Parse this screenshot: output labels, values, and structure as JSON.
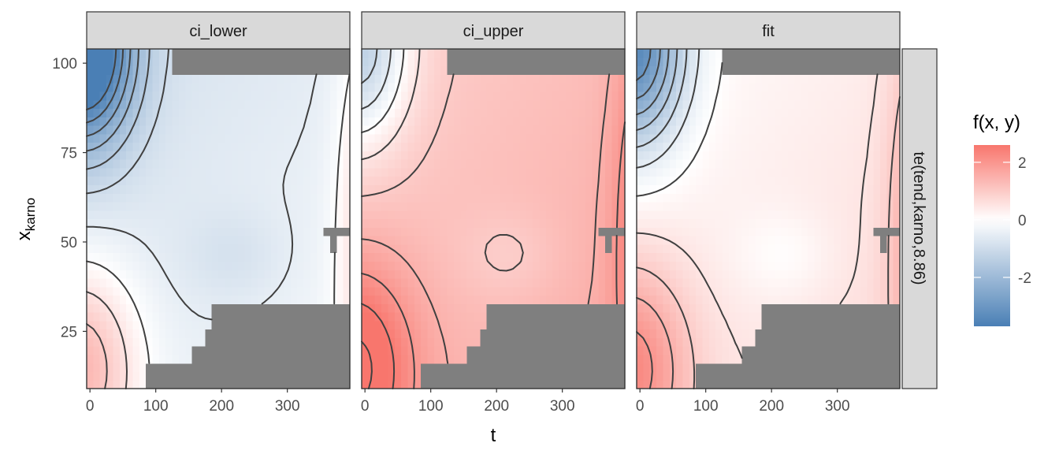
{
  "chart_data": {
    "type": "heatmap",
    "xlabel": "t",
    "ylabel_main": "x",
    "ylabel_sub": "karno",
    "x_ticks": [
      0,
      100,
      200,
      300
    ],
    "y_ticks": [
      25,
      50,
      75,
      100
    ],
    "xlim": [
      -5,
      395
    ],
    "ylim": [
      9,
      104
    ],
    "facet_row_label": "te(tend,karno,8.86)",
    "legend": {
      "title": "f(x, y)",
      "ticks": [
        2,
        0,
        -2
      ],
      "tick_labels": [
        "2",
        "0",
        "-2"
      ],
      "range": [
        -3.7,
        2.6
      ],
      "colors": {
        "low": "#4a7fb5",
        "mid": "#ffffff",
        "high": "#f8766d"
      }
    },
    "missing_color": "#7f7f7f",
    "contour_color": "#404040",
    "panels": [
      {
        "label": "ci_lower",
        "offset": -0.9,
        "cold": 1.2
      },
      {
        "label": "ci_upper",
        "offset": 0.9,
        "cold": 0.65
      },
      {
        "label": "fit",
        "offset": 0.0,
        "cold": 1.0
      }
    ],
    "missing_regions": [
      {
        "x": [
          130,
          395
        ],
        "y": [
          98,
          104
        ]
      },
      {
        "x": [
          355,
          395
        ],
        "y": [
          51,
          53
        ]
      },
      {
        "x": [
          365,
          375
        ],
        "y": [
          47,
          51
        ]
      },
      {
        "x": [
          190,
          395
        ],
        "y": [
          25,
          32
        ]
      },
      {
        "x": [
          180,
          395
        ],
        "y": [
          21,
          25
        ]
      },
      {
        "x": [
          155,
          395
        ],
        "y": [
          17,
          21
        ]
      },
      {
        "x": [
          68,
          395
        ],
        "y": [
          15,
          17
        ]
      },
      {
        "x": [
          85,
          395
        ],
        "y": [
          9,
          15
        ]
      }
    ]
  }
}
